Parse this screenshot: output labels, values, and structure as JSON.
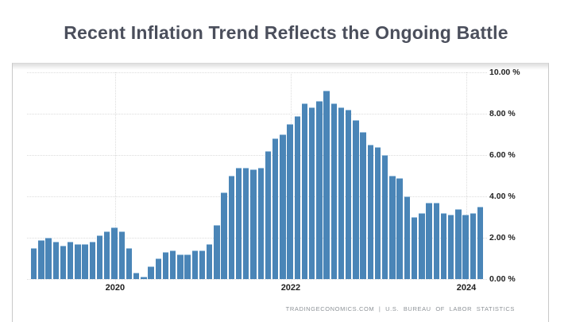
{
  "title": "Recent Inflation Trend Reflects the Ongoing Battle",
  "footer": {
    "attribution": "TRADINGECONOMICS.COM  |  U.S. BUREAU OF LABOR STATISTICS"
  },
  "colors": {
    "bar": "#4a85b7",
    "bar_cap": "#9dc1de",
    "title_text": "#4b4f5c",
    "axis_text": "#1f1f1f",
    "grid": "#dcdcdc",
    "panel_border": "#c9c9c9",
    "footer_text": "#8e9398"
  },
  "chart_data": {
    "type": "bar",
    "title": "Recent Inflation Trend Reflects the Ongoing Battle",
    "unit": "percent YoY",
    "ylim": [
      0,
      10
    ],
    "grid": "dotted",
    "legend": "none",
    "y_ticks": [
      "0.00 %",
      "2.00 %",
      "4.00 %",
      "6.00 %",
      "8.00 %",
      "10.00 %"
    ],
    "y_tick_values": [
      0,
      2,
      4,
      6,
      8,
      10
    ],
    "x_tick_labels": [
      "2020",
      "2022",
      "2024"
    ],
    "x_tick_month_indices": [
      11,
      35,
      59
    ],
    "x": [
      "2019-02",
      "2019-03",
      "2019-04",
      "2019-05",
      "2019-06",
      "2019-07",
      "2019-08",
      "2019-09",
      "2019-10",
      "2019-11",
      "2019-12",
      "2020-01",
      "2020-02",
      "2020-03",
      "2020-04",
      "2020-05",
      "2020-06",
      "2020-07",
      "2020-08",
      "2020-09",
      "2020-10",
      "2020-11",
      "2020-12",
      "2021-01",
      "2021-02",
      "2021-03",
      "2021-04",
      "2021-05",
      "2021-06",
      "2021-07",
      "2021-08",
      "2021-09",
      "2021-10",
      "2021-11",
      "2021-12",
      "2022-01",
      "2022-02",
      "2022-03",
      "2022-04",
      "2022-05",
      "2022-06",
      "2022-07",
      "2022-08",
      "2022-09",
      "2022-10",
      "2022-11",
      "2022-12",
      "2023-01",
      "2023-02",
      "2023-03",
      "2023-04",
      "2023-05",
      "2023-06",
      "2023-07",
      "2023-08",
      "2023-09",
      "2023-10",
      "2023-11",
      "2023-12",
      "2024-01",
      "2024-02",
      "2024-03"
    ],
    "values": [
      1.5,
      1.9,
      2.0,
      1.8,
      1.6,
      1.8,
      1.7,
      1.7,
      1.8,
      2.1,
      2.3,
      2.5,
      2.3,
      1.5,
      0.3,
      0.1,
      0.6,
      1.0,
      1.3,
      1.4,
      1.2,
      1.2,
      1.4,
      1.4,
      1.7,
      2.6,
      4.2,
      5.0,
      5.4,
      5.4,
      5.3,
      5.4,
      6.2,
      6.8,
      7.0,
      7.5,
      7.9,
      8.5,
      8.3,
      8.6,
      9.1,
      8.5,
      8.3,
      8.2,
      7.7,
      7.1,
      6.5,
      6.4,
      6.0,
      5.0,
      4.9,
      4.0,
      3.0,
      3.2,
      3.7,
      3.7,
      3.2,
      3.1,
      3.4,
      3.1,
      3.2,
      3.5
    ]
  }
}
